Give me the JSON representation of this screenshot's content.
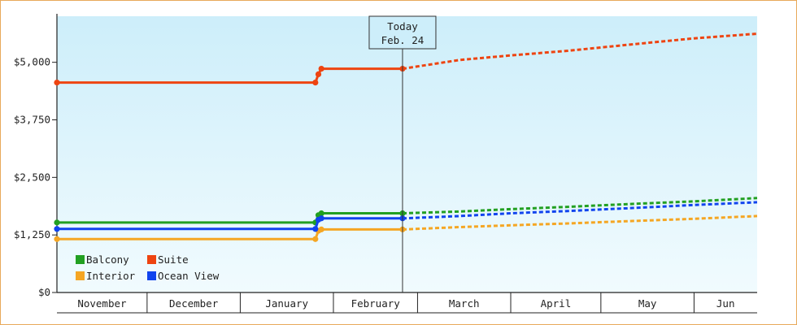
{
  "chart_data": {
    "type": "line",
    "title": "",
    "xlabel": "",
    "ylabel": "",
    "ylim": [
      0,
      6000
    ],
    "y_ticks": [
      {
        "value": 0,
        "label": "$0"
      },
      {
        "value": 1250,
        "label": "$1,250"
      },
      {
        "value": 2500,
        "label": "$2,500"
      },
      {
        "value": 3750,
        "label": "$3,750"
      },
      {
        "value": 5000,
        "label": "$5,000"
      }
    ],
    "x_range": [
      "2013-11-01",
      "2014-06-22"
    ],
    "months": [
      {
        "label": "November",
        "start": "2013-11-01",
        "end": "2013-12-01"
      },
      {
        "label": "December",
        "start": "2013-12-01",
        "end": "2014-01-01"
      },
      {
        "label": "January",
        "start": "2014-01-01",
        "end": "2014-02-01"
      },
      {
        "label": "February",
        "start": "2014-02-01",
        "end": "2014-03-01"
      },
      {
        "label": "March",
        "start": "2014-03-01",
        "end": "2014-04-01"
      },
      {
        "label": "April",
        "start": "2014-04-01",
        "end": "2014-05-01"
      },
      {
        "label": "May",
        "start": "2014-05-01",
        "end": "2014-06-01"
      },
      {
        "label": "Jun",
        "start": "2014-06-01",
        "end": "2014-06-22"
      }
    ],
    "today": {
      "date": "2014-02-24",
      "line1": "Today",
      "line2": "Feb. 24"
    },
    "legend_position": "bottom-left",
    "grid": false,
    "series": [
      {
        "name": "Balcony",
        "color": "#22a022",
        "actual": [
          [
            "2013-11-01",
            1520
          ],
          [
            "2014-01-26",
            1520
          ],
          [
            "2014-01-27",
            1680
          ],
          [
            "2014-01-28",
            1720
          ],
          [
            "2014-02-24",
            1720
          ]
        ],
        "forecast": [
          [
            "2014-02-24",
            1720
          ],
          [
            "2014-03-15",
            1760
          ],
          [
            "2014-04-01",
            1810
          ],
          [
            "2014-04-20",
            1860
          ],
          [
            "2014-05-10",
            1920
          ],
          [
            "2014-06-01",
            1980
          ],
          [
            "2014-06-22",
            2050
          ]
        ]
      },
      {
        "name": "Suite",
        "color": "#ee4411",
        "actual": [
          [
            "2013-11-01",
            4560
          ],
          [
            "2014-01-26",
            4560
          ],
          [
            "2014-01-27",
            4740
          ],
          [
            "2014-01-28",
            4860
          ],
          [
            "2014-02-24",
            4860
          ]
        ],
        "forecast": [
          [
            "2014-02-24",
            4860
          ],
          [
            "2014-03-15",
            5050
          ],
          [
            "2014-04-01",
            5150
          ],
          [
            "2014-04-20",
            5250
          ],
          [
            "2014-05-10",
            5380
          ],
          [
            "2014-06-01",
            5520
          ],
          [
            "2014-06-22",
            5620
          ]
        ]
      },
      {
        "name": "Interior",
        "color": "#f5a623",
        "actual": [
          [
            "2013-11-01",
            1160
          ],
          [
            "2014-01-26",
            1160
          ],
          [
            "2014-01-27",
            1340
          ],
          [
            "2014-01-28",
            1370
          ],
          [
            "2014-02-24",
            1370
          ]
        ],
        "forecast": [
          [
            "2014-02-24",
            1370
          ],
          [
            "2014-03-15",
            1420
          ],
          [
            "2014-04-01",
            1460
          ],
          [
            "2014-04-20",
            1500
          ],
          [
            "2014-05-10",
            1550
          ],
          [
            "2014-06-01",
            1600
          ],
          [
            "2014-06-22",
            1660
          ]
        ]
      },
      {
        "name": "Ocean View",
        "color": "#1144ee",
        "actual": [
          [
            "2013-11-01",
            1380
          ],
          [
            "2014-01-26",
            1380
          ],
          [
            "2014-01-27",
            1580
          ],
          [
            "2014-01-28",
            1610
          ],
          [
            "2014-02-24",
            1610
          ]
        ],
        "forecast": [
          [
            "2014-02-24",
            1610
          ],
          [
            "2014-03-15",
            1660
          ],
          [
            "2014-04-01",
            1720
          ],
          [
            "2014-04-20",
            1770
          ],
          [
            "2014-05-10",
            1830
          ],
          [
            "2014-06-01",
            1900
          ],
          [
            "2014-06-22",
            1960
          ]
        ]
      }
    ]
  }
}
